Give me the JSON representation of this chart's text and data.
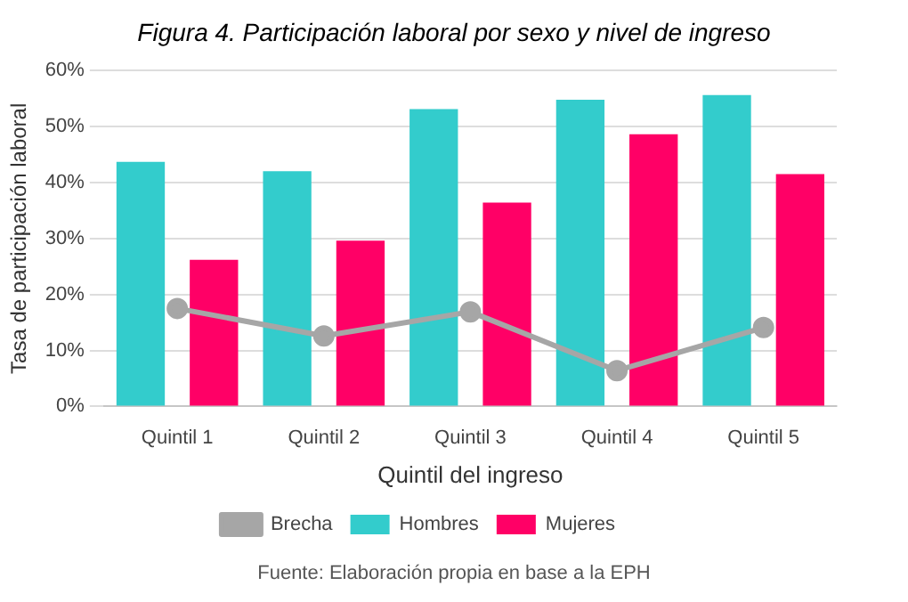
{
  "chart_data": {
    "type": "bar",
    "title": "Figura 4. Participación laboral por sexo y nivel de ingreso",
    "xlabel": "Quintil del ingreso",
    "ylabel": "Tasa de participación laboral",
    "categories": [
      "Quintil 1",
      "Quintil 2",
      "Quintil 3",
      "Quintil 4",
      "Quintil 5"
    ],
    "series": [
      {
        "name": "Hombres",
        "color": "#33cccc",
        "values": [
          43.7,
          42.0,
          53.1,
          54.8,
          55.6
        ]
      },
      {
        "name": "Mujeres",
        "color": "#ff0066",
        "values": [
          26.2,
          29.6,
          36.4,
          48.6,
          41.5
        ]
      },
      {
        "name": "Brecha",
        "type": "line",
        "color": "#a6a6a6",
        "values": [
          17.5,
          12.6,
          16.9,
          6.4,
          14.1
        ]
      }
    ],
    "ylim": [
      0,
      60
    ],
    "yticks": [
      {
        "value": 0,
        "label": "0%"
      },
      {
        "value": 10,
        "label": "10%"
      },
      {
        "value": 20,
        "label": "20%"
      },
      {
        "value": 30,
        "label": "30%"
      },
      {
        "value": 40,
        "label": "40%"
      },
      {
        "value": 50,
        "label": "50%"
      },
      {
        "value": 60,
        "label": "60%"
      }
    ],
    "grid": "y",
    "legend": "bottom",
    "marker": "circle",
    "annotations": [
      "Fuente: Elaboración propia en base a la EPH"
    ]
  }
}
